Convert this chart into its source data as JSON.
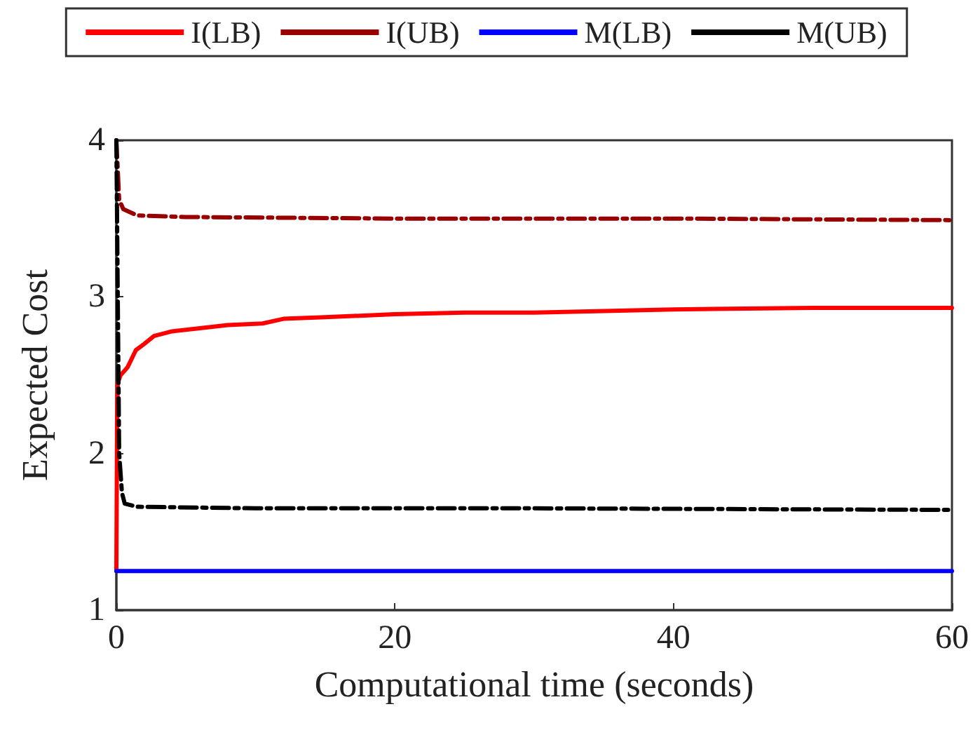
{
  "chart_data": {
    "type": "line",
    "xlabel": "Computational time (seconds)",
    "ylabel": "Expected Cost",
    "xlim": [
      0,
      60
    ],
    "xticks": [
      0,
      20,
      40,
      60
    ],
    "ylim": [
      1,
      4
    ],
    "yticks": [
      1,
      2,
      3,
      4
    ],
    "grid": false,
    "legend": "top",
    "marker": "none",
    "series": [
      {
        "name": "I(LB)",
        "color": "#ff0000",
        "line_style": "solid",
        "x": [
          0,
          0.05,
          0.1,
          0.3,
          0.8,
          1.4,
          2,
          2.7,
          4,
          6,
          8,
          10.5,
          12,
          15,
          20,
          25,
          30,
          40,
          50,
          60
        ],
        "values": [
          1.25,
          2.2,
          2.45,
          2.5,
          2.55,
          2.66,
          2.7,
          2.75,
          2.78,
          2.8,
          2.82,
          2.83,
          2.86,
          2.87,
          2.89,
          2.9,
          2.9,
          2.92,
          2.93,
          2.93
        ]
      },
      {
        "name": "I(UB)",
        "color": "#990000",
        "line_style": "dashed",
        "x": [
          0,
          0.2,
          0.5,
          1.5,
          5,
          20,
          40,
          60
        ],
        "values": [
          4,
          3.62,
          3.56,
          3.52,
          3.51,
          3.5,
          3.5,
          3.49
        ]
      },
      {
        "name": "M(LB)",
        "color": "#0000ff",
        "line_style": "solid",
        "x": [
          0,
          60
        ],
        "values": [
          1.25,
          1.25
        ]
      },
      {
        "name": "M(UB)",
        "color": "#000000",
        "line_style": "dashed",
        "x": [
          0,
          0.1,
          0.2,
          0.4,
          0.6,
          1.5,
          10,
          30,
          60
        ],
        "values": [
          4,
          3.0,
          2.0,
          1.75,
          1.68,
          1.66,
          1.65,
          1.65,
          1.64
        ]
      }
    ]
  }
}
